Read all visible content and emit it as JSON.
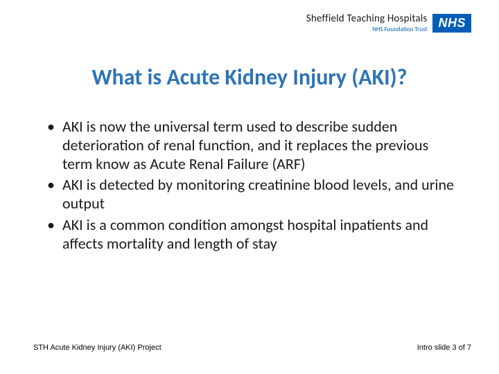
{
  "header": {
    "org_name": "Sheffield Teaching Hospitals",
    "org_sub": "NHS Foundation Trust",
    "logo_text": "NHS",
    "logo_bg": "#005eb8",
    "logo_fg": "#ffffff"
  },
  "slide": {
    "title": "What is Acute Kidney Injury (AKI)?",
    "title_color": "#2e74b5",
    "title_fontsize": 32,
    "bullets": [
      "AKI is now the universal term used to describe sudden deterioration of renal function, and it replaces the previous term know as Acute Renal Failure (ARF)",
      "AKI is detected by monitoring creatinine blood levels, and urine output",
      "AKI is a common condition amongst hospital inpatients and affects mortality and length of stay"
    ],
    "body_fontsize": 22,
    "body_color": "#1a1a1a",
    "background_color": "#ffffff"
  },
  "footer": {
    "left": "STH Acute Kidney Injury (AKI) Project",
    "right": "Intro slide 3 of 7",
    "fontsize": 11
  }
}
